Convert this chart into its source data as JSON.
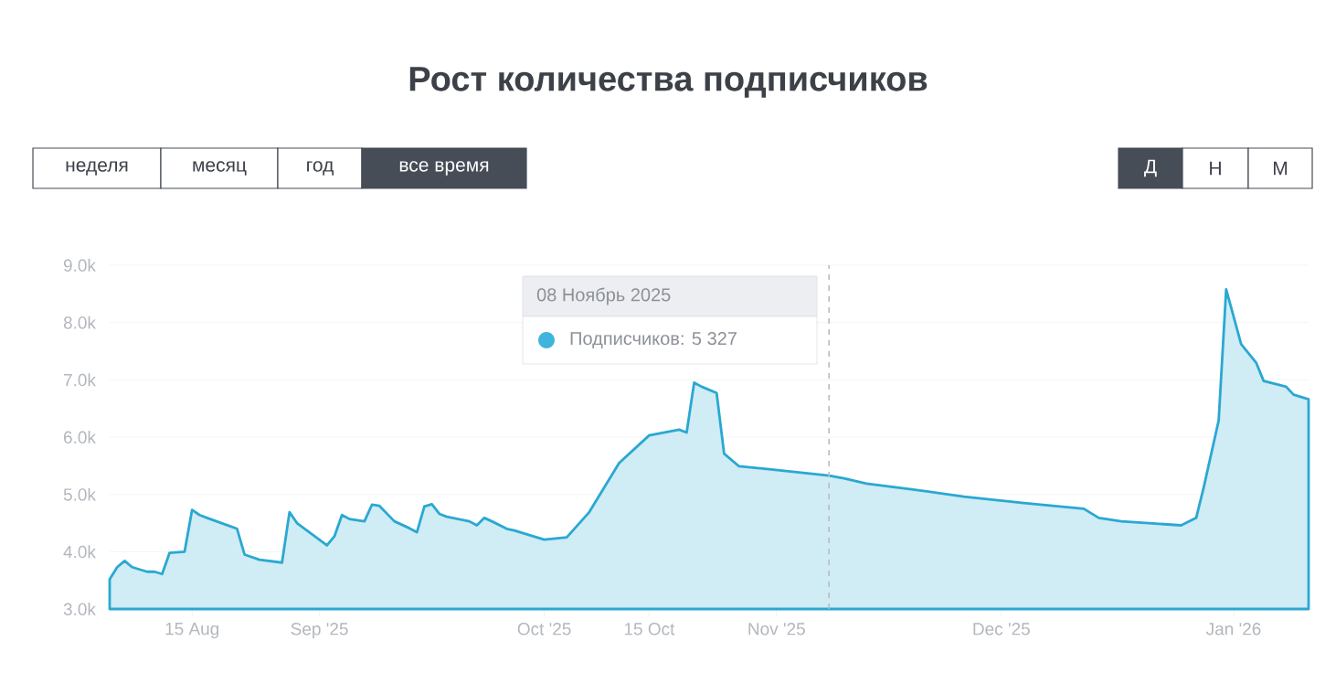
{
  "chart_data": {
    "type": "area",
    "title": "Рост количества подписчиков",
    "x": [
      "2025-08-04",
      "2025-08-05",
      "2025-08-06",
      "2025-08-07",
      "2025-08-09",
      "2025-08-10",
      "2025-08-11",
      "2025-08-12",
      "2025-08-14",
      "2025-08-15",
      "2025-08-16",
      "2025-08-17",
      "2025-08-21",
      "2025-08-22",
      "2025-08-24",
      "2025-08-27",
      "2025-08-28",
      "2025-08-29",
      "2025-09-02",
      "2025-09-03",
      "2025-09-04",
      "2025-09-05",
      "2025-09-07",
      "2025-09-08",
      "2025-09-09",
      "2025-09-11",
      "2025-09-13",
      "2025-09-14",
      "2025-09-15",
      "2025-09-16",
      "2025-09-17",
      "2025-09-18",
      "2025-09-21",
      "2025-09-22",
      "2025-09-23",
      "2025-09-24",
      "2025-09-26",
      "2025-09-27",
      "2025-10-01",
      "2025-10-04",
      "2025-10-07",
      "2025-10-11",
      "2025-10-15",
      "2025-10-19",
      "2025-10-20",
      "2025-10-21",
      "2025-10-22",
      "2025-10-24",
      "2025-10-25",
      "2025-10-27",
      "2025-10-31",
      "2025-11-08",
      "2025-11-10",
      "2025-11-13",
      "2025-11-19",
      "2025-11-26",
      "2025-12-04",
      "2025-12-12",
      "2025-12-14",
      "2025-12-17",
      "2025-12-25",
      "2025-12-27",
      "2025-12-28",
      "2025-12-30",
      "2025-12-31",
      "2026-01-01",
      "2026-01-02",
      "2026-01-04",
      "2026-01-05",
      "2026-01-08",
      "2026-01-09",
      "2026-01-11"
    ],
    "series": [
      {
        "color": "#2aa8d2",
        "values": [
          3520,
          3730,
          3840,
          3730,
          3650,
          3650,
          3610,
          3980,
          4000,
          4730,
          4640,
          4590,
          4400,
          3950,
          3860,
          3810,
          4690,
          4500,
          4110,
          4270,
          4640,
          4570,
          4530,
          4820,
          4800,
          4530,
          4410,
          4340,
          4790,
          4830,
          4660,
          4610,
          4530,
          4460,
          4590,
          4530,
          4400,
          4370,
          4210,
          4250,
          4690,
          5550,
          6030,
          6130,
          6080,
          6950,
          6880,
          6770,
          5710,
          5490,
          5440,
          5327,
          5280,
          5190,
          5090,
          4960,
          4850,
          4750,
          4590,
          4530,
          4460,
          4590,
          5120,
          6290,
          8580,
          8100,
          7620,
          7300,
          6980,
          6880,
          6740,
          6660
        ]
      }
    ],
    "xlim": [
      "2025-08-04",
      "2026-01-11"
    ],
    "xticks": [
      {
        "value": "2025-08-15",
        "label": "15 Aug"
      },
      {
        "value": "2025-09-01",
        "label": "Sep '25"
      },
      {
        "value": "2025-10-01",
        "label": "Oct '25"
      },
      {
        "value": "2025-10-15",
        "label": "15 Oct"
      },
      {
        "value": "2025-11-01",
        "label": "Nov '25"
      },
      {
        "value": "2025-12-01",
        "label": "Dec '25"
      },
      {
        "value": "2026-01-01",
        "label": "Jan '26"
      }
    ],
    "ylim": [
      3000,
      9000
    ],
    "yticks": [
      {
        "value": 3000,
        "label": "3.0k"
      },
      {
        "value": 4000,
        "label": "4.0k"
      },
      {
        "value": 5000,
        "label": "5.0k"
      },
      {
        "value": 6000,
        "label": "6.0k"
      },
      {
        "value": 7000,
        "label": "7.0k"
      },
      {
        "value": 8000,
        "label": "8.0k"
      },
      {
        "value": 9000,
        "label": "9.0k"
      }
    ],
    "grid": "y",
    "ref_lines": [
      {
        "axis": "x",
        "value": "2025-11-08",
        "color": "#b8bcc2",
        "line_style": "dashed"
      }
    ],
    "annotations": [
      "неделя",
      "месяц",
      "год",
      "все время",
      "Д",
      "Н",
      "М",
      "08 Ноябрь 2025",
      "Подписчиков: 5 327"
    ]
  }
}
